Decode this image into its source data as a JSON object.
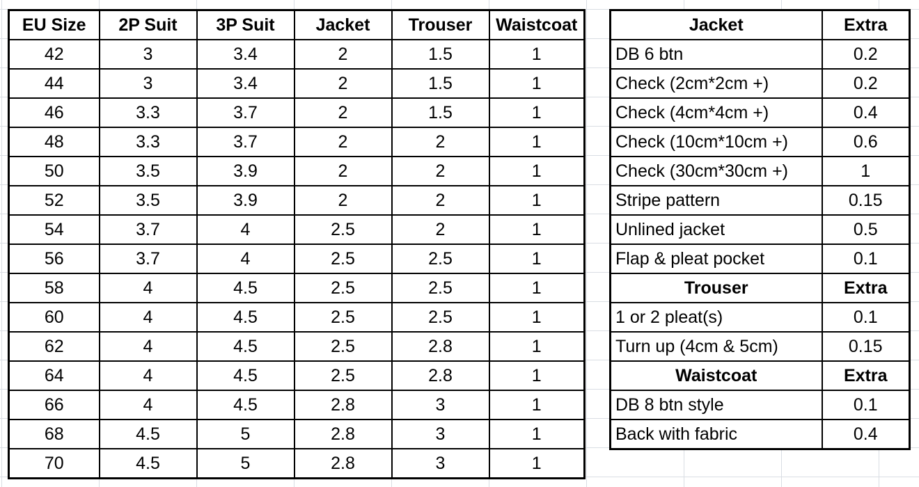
{
  "size_table": {
    "headers": [
      "EU Size",
      "2P Suit",
      "3P Suit",
      "Jacket",
      "Trouser",
      "Waistcoat"
    ],
    "rows": [
      [
        "42",
        "3",
        "3.4",
        "2",
        "1.5",
        "1"
      ],
      [
        "44",
        "3",
        "3.4",
        "2",
        "1.5",
        "1"
      ],
      [
        "46",
        "3.3",
        "3.7",
        "2",
        "1.5",
        "1"
      ],
      [
        "48",
        "3.3",
        "3.7",
        "2",
        "2",
        "1"
      ],
      [
        "50",
        "3.5",
        "3.9",
        "2",
        "2",
        "1"
      ],
      [
        "52",
        "3.5",
        "3.9",
        "2",
        "2",
        "1"
      ],
      [
        "54",
        "3.7",
        "4",
        "2.5",
        "2",
        "1"
      ],
      [
        "56",
        "3.7",
        "4",
        "2.5",
        "2.5",
        "1"
      ],
      [
        "58",
        "4",
        "4.5",
        "2.5",
        "2.5",
        "1"
      ],
      [
        "60",
        "4",
        "4.5",
        "2.5",
        "2.5",
        "1"
      ],
      [
        "62",
        "4",
        "4.5",
        "2.5",
        "2.8",
        "1"
      ],
      [
        "64",
        "4",
        "4.5",
        "2.5",
        "2.8",
        "1"
      ],
      [
        "66",
        "4",
        "4.5",
        "2.8",
        "3",
        "1"
      ],
      [
        "68",
        "4.5",
        "5",
        "2.8",
        "3",
        "1"
      ],
      [
        "70",
        "4.5",
        "5",
        "2.8",
        "3",
        "1"
      ]
    ]
  },
  "extras_table": {
    "sections": [
      {
        "header": "Jacket",
        "extra_label": "Extra",
        "rows": [
          [
            "DB 6 btn",
            "0.2"
          ],
          [
            "Check (2cm*2cm +)",
            "0.2"
          ],
          [
            "Check (4cm*4cm +)",
            "0.4"
          ],
          [
            "Check (10cm*10cm +)",
            "0.6"
          ],
          [
            "Check (30cm*30cm +)",
            "1"
          ],
          [
            "Stripe pattern",
            "0.15"
          ],
          [
            "Unlined jacket",
            "0.5"
          ],
          [
            "Flap & pleat pocket",
            "0.1"
          ]
        ]
      },
      {
        "header": "Trouser",
        "extra_label": "Extra",
        "rows": [
          [
            "1 or 2 pleat(s)",
            "0.1"
          ],
          [
            "Turn up (4cm & 5cm)",
            "0.15"
          ]
        ]
      },
      {
        "header": "Waistcoat",
        "extra_label": "Extra",
        "rows": [
          [
            "DB 8 btn style",
            "0.1"
          ],
          [
            "Back with fabric",
            "0.4"
          ]
        ]
      }
    ]
  }
}
